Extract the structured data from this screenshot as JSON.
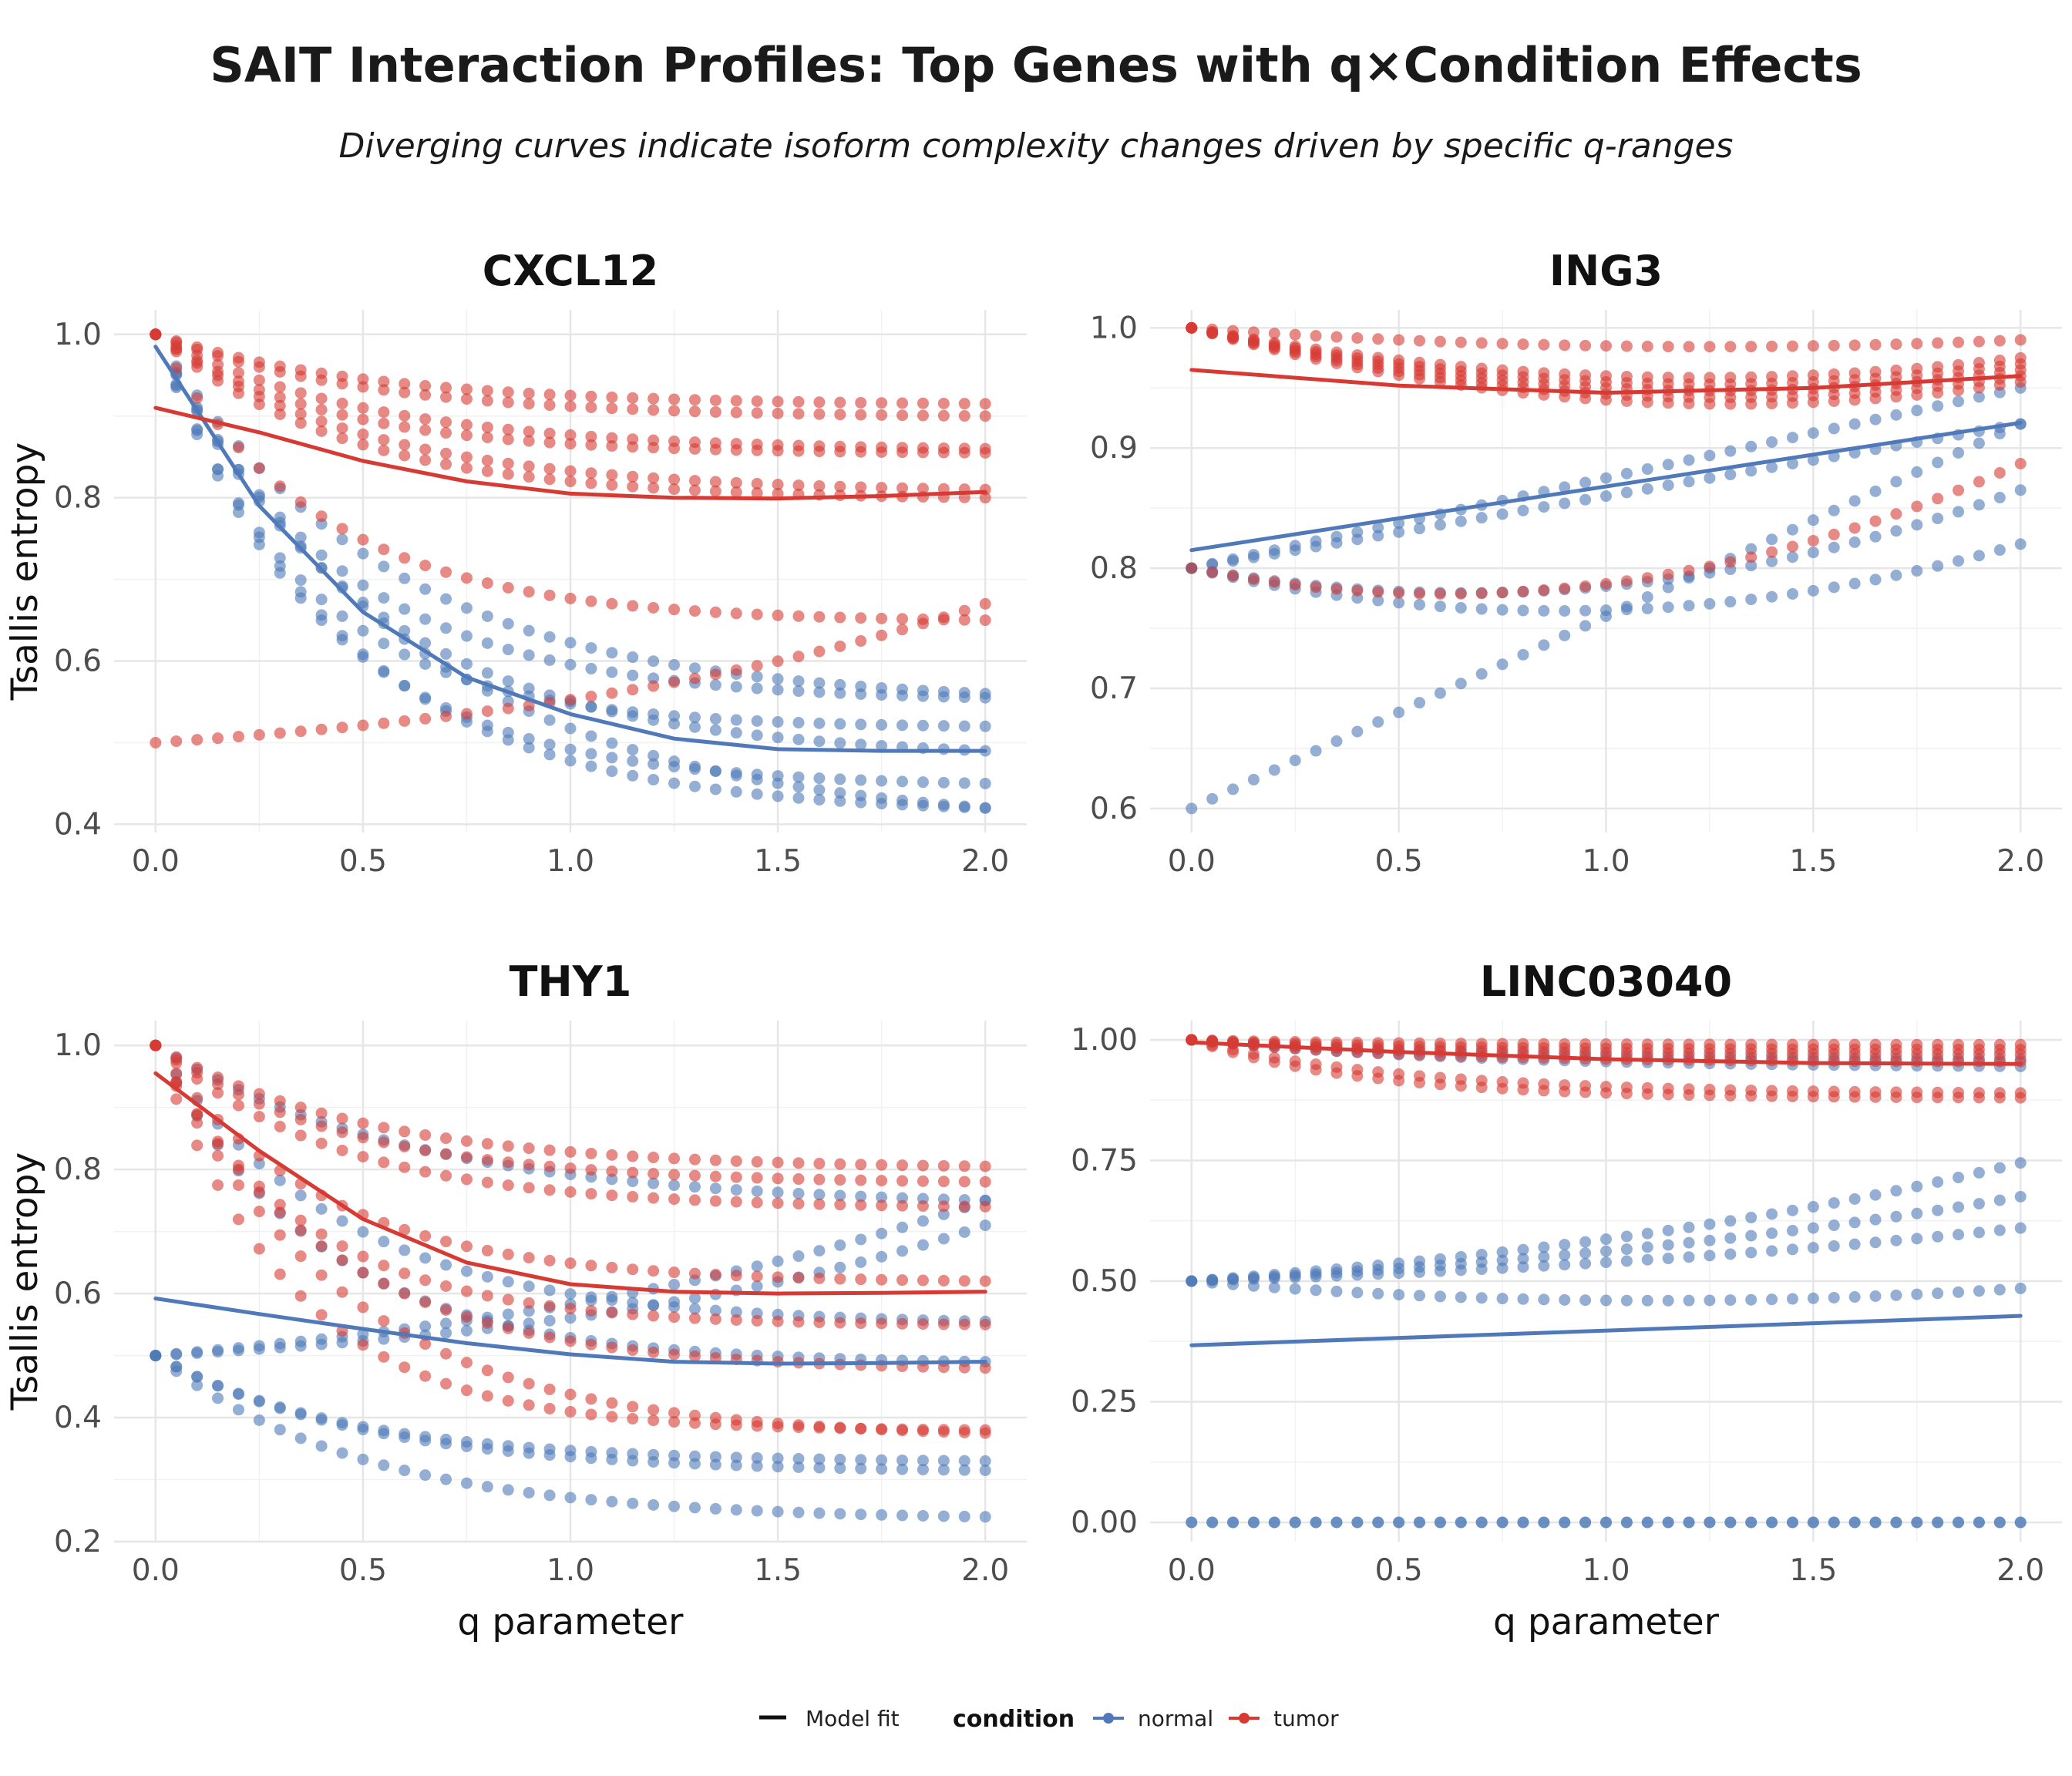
{
  "title": "SAIT Interaction Profiles: Top Genes with q×Condition Effects",
  "subtitle": "Diverging curves indicate isoform complexity changes driven by specific q-ranges",
  "legend": {
    "fit_label": "Model fit",
    "condition_title": "condition",
    "normal_label": "normal",
    "tumor_label": "tumor",
    "position": "bottom"
  },
  "colors": {
    "normal": "#4f79b8",
    "tumor": "#d73a33"
  },
  "chart_data": [
    {
      "type": "scatter",
      "title": "CXCL12",
      "xlabel": "",
      "ylabel": "Tsallis entropy",
      "xlim": [
        -0.1,
        2.1
      ],
      "ylim": [
        0.39,
        1.03
      ],
      "xticks": [
        "0.0",
        "0.5",
        "1.0",
        "1.5",
        "2.0"
      ],
      "yticks": [
        "0.4",
        "0.6",
        "0.8",
        "1.0"
      ],
      "grid": true,
      "series": [
        {
          "name": "normal",
          "curves": [
            {
              "start": 1.0,
              "end": 0.42,
              "k": 2.2
            },
            {
              "start": 1.0,
              "end": 0.45,
              "k": 2.5
            },
            {
              "start": 1.0,
              "end": 0.49,
              "k": 2.0
            },
            {
              "start": 1.0,
              "end": 0.52,
              "k": 2.8
            },
            {
              "start": 1.0,
              "end": 0.555,
              "k": 2.3
            },
            {
              "start": 1.0,
              "end": 0.56,
              "k": 1.8
            },
            {
              "start": 1.0,
              "end": 0.42,
              "k": 1.6
            }
          ]
        },
        {
          "name": "tumor",
          "curves": [
            {
              "start": 1.0,
              "end": 0.915,
              "k": 2.0
            },
            {
              "start": 1.0,
              "end": 0.9,
              "k": 2.0
            },
            {
              "start": 1.0,
              "end": 0.86,
              "k": 2.0
            },
            {
              "start": 1.0,
              "end": 0.855,
              "k": 2.5
            },
            {
              "start": 1.0,
              "end": 0.8,
              "k": 2.2
            },
            {
              "start": 1.0,
              "end": 0.81,
              "k": 2.0
            },
            {
              "start": 1.0,
              "end": 0.65,
              "k": 2.5
            },
            {
              "start": 0.5,
              "end": 0.67,
              "k": -0.8
            }
          ]
        }
      ],
      "fits": [
        {
          "name": "normal",
          "x": [
            0.0,
            0.25,
            0.5,
            0.75,
            1.0,
            1.25,
            1.5,
            1.75,
            2.0
          ],
          "y": [
            0.985,
            0.79,
            0.66,
            0.58,
            0.535,
            0.505,
            0.492,
            0.49,
            0.49
          ]
        },
        {
          "name": "tumor",
          "x": [
            0.0,
            0.25,
            0.5,
            0.75,
            1.0,
            1.25,
            1.5,
            1.75,
            2.0
          ],
          "y": [
            0.91,
            0.88,
            0.845,
            0.82,
            0.805,
            0.8,
            0.799,
            0.802,
            0.807
          ]
        }
      ]
    },
    {
      "type": "scatter",
      "title": "ING3",
      "xlabel": "",
      "ylabel": "",
      "xlim": [
        -0.1,
        2.1
      ],
      "ylim": [
        0.58,
        1.015
      ],
      "xticks": [
        "0.0",
        "0.5",
        "1.0",
        "1.5",
        "2.0"
      ],
      "yticks": [
        "0.6",
        "0.7",
        "0.8",
        "0.9",
        "1.0"
      ],
      "grid": true,
      "series": [
        {
          "name": "normal",
          "curves": [
            {
              "start": 0.6,
              "end": 0.92,
              "k": 0,
              "linear": true
            },
            {
              "start": 0.8,
              "end": 0.92,
              "k": 0,
              "linear": true,
              "bend": 0.0
            },
            {
              "start": 0.8,
              "end": 0.95,
              "k": 0,
              "linear": true
            },
            {
              "start": 0.8,
              "end": 0.865,
              "dip": 0.785
            },
            {
              "start": 0.8,
              "end": 0.82,
              "dip": 0.765
            }
          ]
        },
        {
          "name": "tumor",
          "curves": [
            {
              "start": 1.0,
              "end": 0.99,
              "dip": 0.985
            },
            {
              "start": 1.0,
              "end": 0.975,
              "dip": 0.96
            },
            {
              "start": 1.0,
              "end": 0.97,
              "dip": 0.955
            },
            {
              "start": 1.0,
              "end": 0.965,
              "dip": 0.95
            },
            {
              "start": 1.0,
              "end": 0.96,
              "dip": 0.945
            },
            {
              "start": 1.0,
              "end": 0.955,
              "dip": 0.94
            },
            {
              "start": 0.8,
              "end": 0.887,
              "dip": 0.787
            }
          ]
        }
      ],
      "fits": [
        {
          "name": "normal",
          "x": [
            0.0,
            2.0
          ],
          "y": [
            0.815,
            0.921
          ]
        },
        {
          "name": "tumor",
          "x": [
            0.0,
            0.5,
            1.0,
            1.5,
            2.0
          ],
          "y": [
            0.965,
            0.952,
            0.946,
            0.95,
            0.96
          ]
        }
      ]
    },
    {
      "type": "scatter",
      "title": "THY1",
      "xlabel": "q parameter",
      "ylabel": "Tsallis entropy",
      "xlim": [
        -0.1,
        2.1
      ],
      "ylim": [
        0.2,
        1.04
      ],
      "xticks": [
        "0.0",
        "0.5",
        "1.0",
        "1.5",
        "2.0"
      ],
      "yticks": [
        "0.2",
        "0.4",
        "0.6",
        "0.8",
        "1.0"
      ],
      "grid": true,
      "series": [
        {
          "name": "normal",
          "curves": [
            {
              "start": 0.5,
              "end": 0.24,
              "k": 2.0
            },
            {
              "start": 0.5,
              "end": 0.315,
              "k": 2.0
            },
            {
              "start": 0.5,
              "end": 0.33,
              "k": 2.2
            },
            {
              "start": 0.5,
              "end": 0.71,
              "k": -0.9
            },
            {
              "start": 0.5,
              "end": 0.75,
              "k": -0.7
            },
            {
              "start": 1.0,
              "end": 0.75,
              "k": 1.6
            },
            {
              "start": 1.0,
              "end": 0.555,
              "k": 2.2
            },
            {
              "start": 1.0,
              "end": 0.49,
              "k": 2.5
            }
          ]
        },
        {
          "name": "tumor",
          "curves": [
            {
              "start": 1.0,
              "end": 0.805,
              "k": 2.0
            },
            {
              "start": 1.0,
              "end": 0.78,
              "k": 2.2
            },
            {
              "start": 1.0,
              "end": 0.74,
              "k": 2.3
            },
            {
              "start": 1.0,
              "end": 0.62,
              "k": 2.5
            },
            {
              "start": 1.0,
              "end": 0.55,
              "k": 2.8
            },
            {
              "start": 1.0,
              "end": 0.48,
              "k": 2.4
            },
            {
              "start": 1.0,
              "end": 0.375,
              "k": 2.2
            },
            {
              "start": 1.0,
              "end": 0.38,
              "k": 3.0
            }
          ]
        }
      ],
      "fits": [
        {
          "name": "normal",
          "x": [
            0.0,
            0.25,
            0.5,
            0.75,
            1.0,
            1.25,
            1.5,
            1.75,
            2.0
          ],
          "y": [
            0.592,
            0.567,
            0.543,
            0.52,
            0.502,
            0.49,
            0.487,
            0.488,
            0.49
          ]
        },
        {
          "name": "tumor",
          "x": [
            0.0,
            0.25,
            0.5,
            0.75,
            1.0,
            1.25,
            1.5,
            1.75,
            2.0
          ],
          "y": [
            0.955,
            0.83,
            0.72,
            0.65,
            0.615,
            0.603,
            0.6,
            0.601,
            0.603
          ]
        }
      ]
    },
    {
      "type": "scatter",
      "title": "LINC03040",
      "xlabel": "q parameter",
      "ylabel": "",
      "xlim": [
        -0.1,
        2.1
      ],
      "ylim": [
        -0.04,
        1.04
      ],
      "xticks": [
        "0.0",
        "0.5",
        "1.0",
        "1.5",
        "2.0"
      ],
      "yticks": [
        "0.00",
        "0.25",
        "0.50",
        "0.75",
        "1.00"
      ],
      "grid": true,
      "series": [
        {
          "name": "normal",
          "curves": [
            {
              "start": 0.0,
              "end": 0.0,
              "k": 0
            },
            {
              "start": 0.0,
              "end": 0.0,
              "k": 0
            },
            {
              "start": 0.5,
              "end": 0.745,
              "k": -0.6
            },
            {
              "start": 0.5,
              "end": 0.675,
              "k": -0.6
            },
            {
              "start": 0.5,
              "end": 0.61,
              "k": -0.6
            },
            {
              "start": 0.5,
              "end": 0.485,
              "dip": 0.46
            },
            {
              "start": 1.0,
              "end": 0.945,
              "k": 1.5
            },
            {
              "start": 1.0,
              "end": 0.96,
              "k": 1.5
            }
          ]
        },
        {
          "name": "tumor",
          "curves": [
            {
              "start": 1.0,
              "end": 0.99,
              "k": 2.0
            },
            {
              "start": 1.0,
              "end": 0.98,
              "k": 2.0
            },
            {
              "start": 1.0,
              "end": 0.97,
              "k": 2.0
            },
            {
              "start": 1.0,
              "end": 0.955,
              "k": 2.0
            },
            {
              "start": 1.0,
              "end": 0.89,
              "k": 2.0
            },
            {
              "start": 1.0,
              "end": 0.88,
              "k": 2.4
            }
          ]
        }
      ],
      "fits": [
        {
          "name": "normal",
          "x": [
            0.0,
            2.0
          ],
          "y": [
            0.367,
            0.428
          ]
        },
        {
          "name": "tumor",
          "x": [
            0.0,
            0.5,
            1.0,
            1.5,
            2.0
          ],
          "y": [
            0.995,
            0.975,
            0.96,
            0.952,
            0.95
          ]
        }
      ]
    }
  ]
}
